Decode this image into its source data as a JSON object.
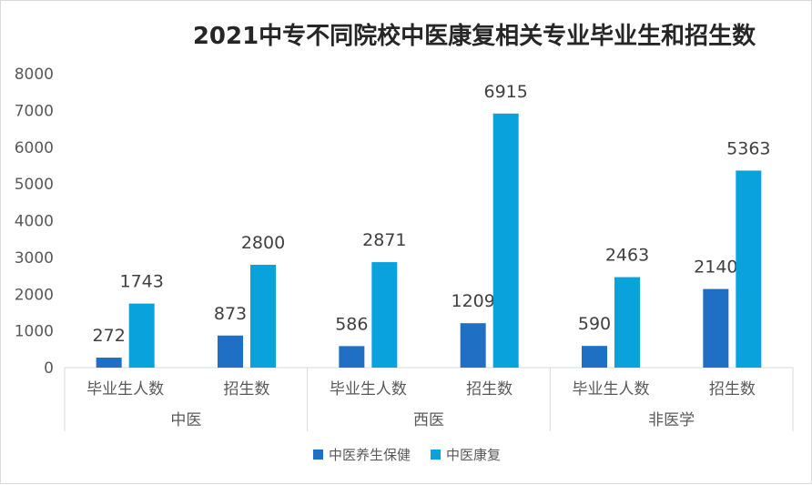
{
  "chart_data": {
    "type": "bar",
    "title": "2021中专不同院校中医康复相关专业毕业生和招生数",
    "groups": [
      {
        "name": "中医",
        "categories": [
          "毕业生人数",
          "招生数"
        ]
      },
      {
        "name": "西医",
        "categories": [
          "毕业生人数",
          "招生数"
        ]
      },
      {
        "name": "非医学",
        "categories": [
          "毕业生人数",
          "招生数"
        ]
      }
    ],
    "series": [
      {
        "name": "中医养生保健",
        "color": "#1f6fc5",
        "values": [
          272,
          873,
          586,
          1209,
          590,
          2140
        ]
      },
      {
        "name": "中医康复",
        "color": "#0aa2dc",
        "values": [
          1743,
          2800,
          2871,
          6915,
          2463,
          5363
        ]
      }
    ],
    "ylim": [
      0,
      8000
    ],
    "yticks": [
      0,
      1000,
      2000,
      3000,
      4000,
      5000,
      6000,
      7000,
      8000
    ],
    "grid": false,
    "legend": "bottom"
  }
}
